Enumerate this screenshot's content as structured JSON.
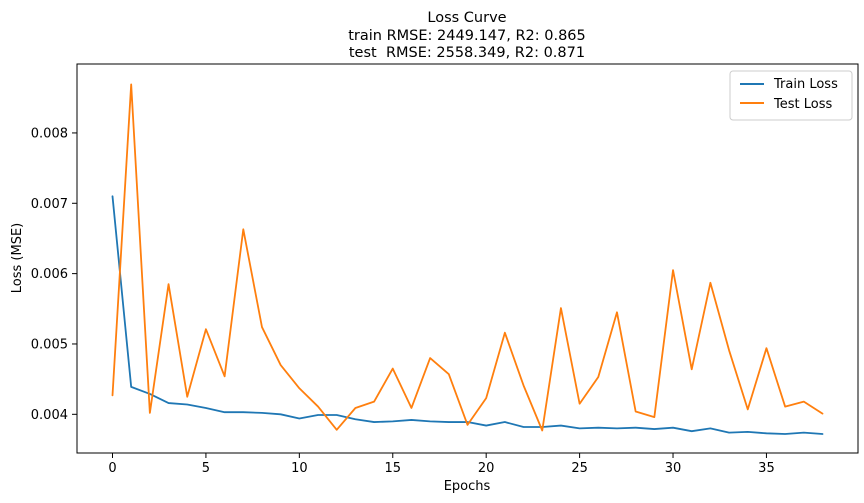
{
  "chart_data": {
    "type": "line",
    "title_lines": [
      "Loss Curve",
      "train RMSE: 2449.147, R2: 0.865",
      "test  RMSE: 2558.349, R2: 0.871"
    ],
    "xlabel": "Epochs",
    "ylabel": "Loss (MSE)",
    "xlim": [
      -1.9,
      39.9
    ],
    "ylim": [
      0.00345,
      0.00898
    ],
    "xticks": [
      0,
      5,
      10,
      15,
      20,
      25,
      30,
      35
    ],
    "yticks": [
      0.004,
      0.005,
      0.006,
      0.007,
      0.008
    ],
    "ytick_labels": [
      "0.004",
      "0.005",
      "0.006",
      "0.007",
      "0.008"
    ],
    "grid": false,
    "legend_position": "top-right",
    "x": [
      0,
      1,
      2,
      3,
      4,
      5,
      6,
      7,
      8,
      9,
      10,
      11,
      12,
      13,
      14,
      15,
      16,
      17,
      18,
      19,
      20,
      21,
      22,
      23,
      24,
      25,
      26,
      27,
      28,
      29,
      30,
      31,
      32,
      33,
      34,
      35,
      36,
      37,
      38
    ],
    "series": [
      {
        "name": "Train Loss",
        "color": "#1f77b4",
        "values": [
          0.0071,
          0.00439,
          0.00429,
          0.00416,
          0.00414,
          0.00409,
          0.00403,
          0.00403,
          0.00402,
          0.004,
          0.00394,
          0.00399,
          0.00399,
          0.00393,
          0.00389,
          0.0039,
          0.00392,
          0.0039,
          0.00389,
          0.00389,
          0.00384,
          0.00389,
          0.00382,
          0.00382,
          0.00384,
          0.0038,
          0.00381,
          0.0038,
          0.00381,
          0.00379,
          0.00381,
          0.00376,
          0.0038,
          0.00374,
          0.00375,
          0.00373,
          0.00372,
          0.00374,
          0.00372
        ]
      },
      {
        "name": "Test Loss",
        "color": "#ff7f0e",
        "values": [
          0.00427,
          0.00869,
          0.00402,
          0.00585,
          0.00425,
          0.00521,
          0.00454,
          0.00663,
          0.00524,
          0.0047,
          0.00437,
          0.00411,
          0.00378,
          0.00409,
          0.00418,
          0.00465,
          0.00409,
          0.0048,
          0.00457,
          0.00385,
          0.00423,
          0.00516,
          0.00441,
          0.00377,
          0.00551,
          0.00415,
          0.00453,
          0.00545,
          0.00404,
          0.00396,
          0.00605,
          0.00464,
          0.00587,
          0.00491,
          0.00407,
          0.00494,
          0.00411,
          0.00418,
          0.00401
        ]
      }
    ]
  }
}
